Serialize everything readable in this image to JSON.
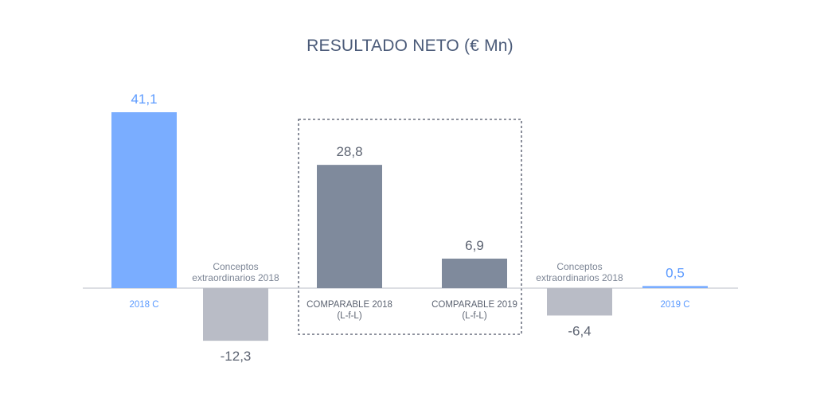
{
  "chart_data": {
    "type": "bar",
    "title": "RESULTADO NETO (€ Mn)",
    "ylim": [
      -14,
      48
    ],
    "bars": [
      {
        "category": [
          "2018 C"
        ],
        "value": 41.1,
        "label": "41,1",
        "color": "#7aadff",
        "label_color": "#5b9aff",
        "cat_color": "#5b9aff"
      },
      {
        "category": [],
        "annotation": [
          "Conceptos",
          "extraordinarios 2018"
        ],
        "value": -12.3,
        "label": "-12,3",
        "color": "#b9bcc6",
        "label_color": "#5d6472",
        "cat_color": "#5d6472"
      },
      {
        "category": [
          "COMPARABLE 2018",
          "(L-f-L)"
        ],
        "value": 28.8,
        "label": "28,8",
        "color": "#7f8a9c",
        "label_color": "#5d6472",
        "cat_color": "#5d6472"
      },
      {
        "category": [
          "COMPARABLE 2019",
          "(L-f-L)"
        ],
        "value": 6.9,
        "label": "6,9",
        "color": "#7f8a9c",
        "label_color": "#5d6472",
        "cat_color": "#5d6472"
      },
      {
        "category": [],
        "annotation": [
          "Conceptos",
          "extraordinarios 2018"
        ],
        "value": -6.4,
        "label": "-6,4",
        "color": "#b9bcc6",
        "label_color": "#5d6472",
        "cat_color": "#5d6472"
      },
      {
        "category": [
          "2019 C"
        ],
        "value": 0.5,
        "label": "0,5",
        "color": "#7aadff",
        "label_color": "#5b9aff",
        "cat_color": "#5b9aff"
      }
    ],
    "highlight_box": {
      "covers_bars": [
        2,
        3
      ],
      "style": "dashed"
    }
  }
}
